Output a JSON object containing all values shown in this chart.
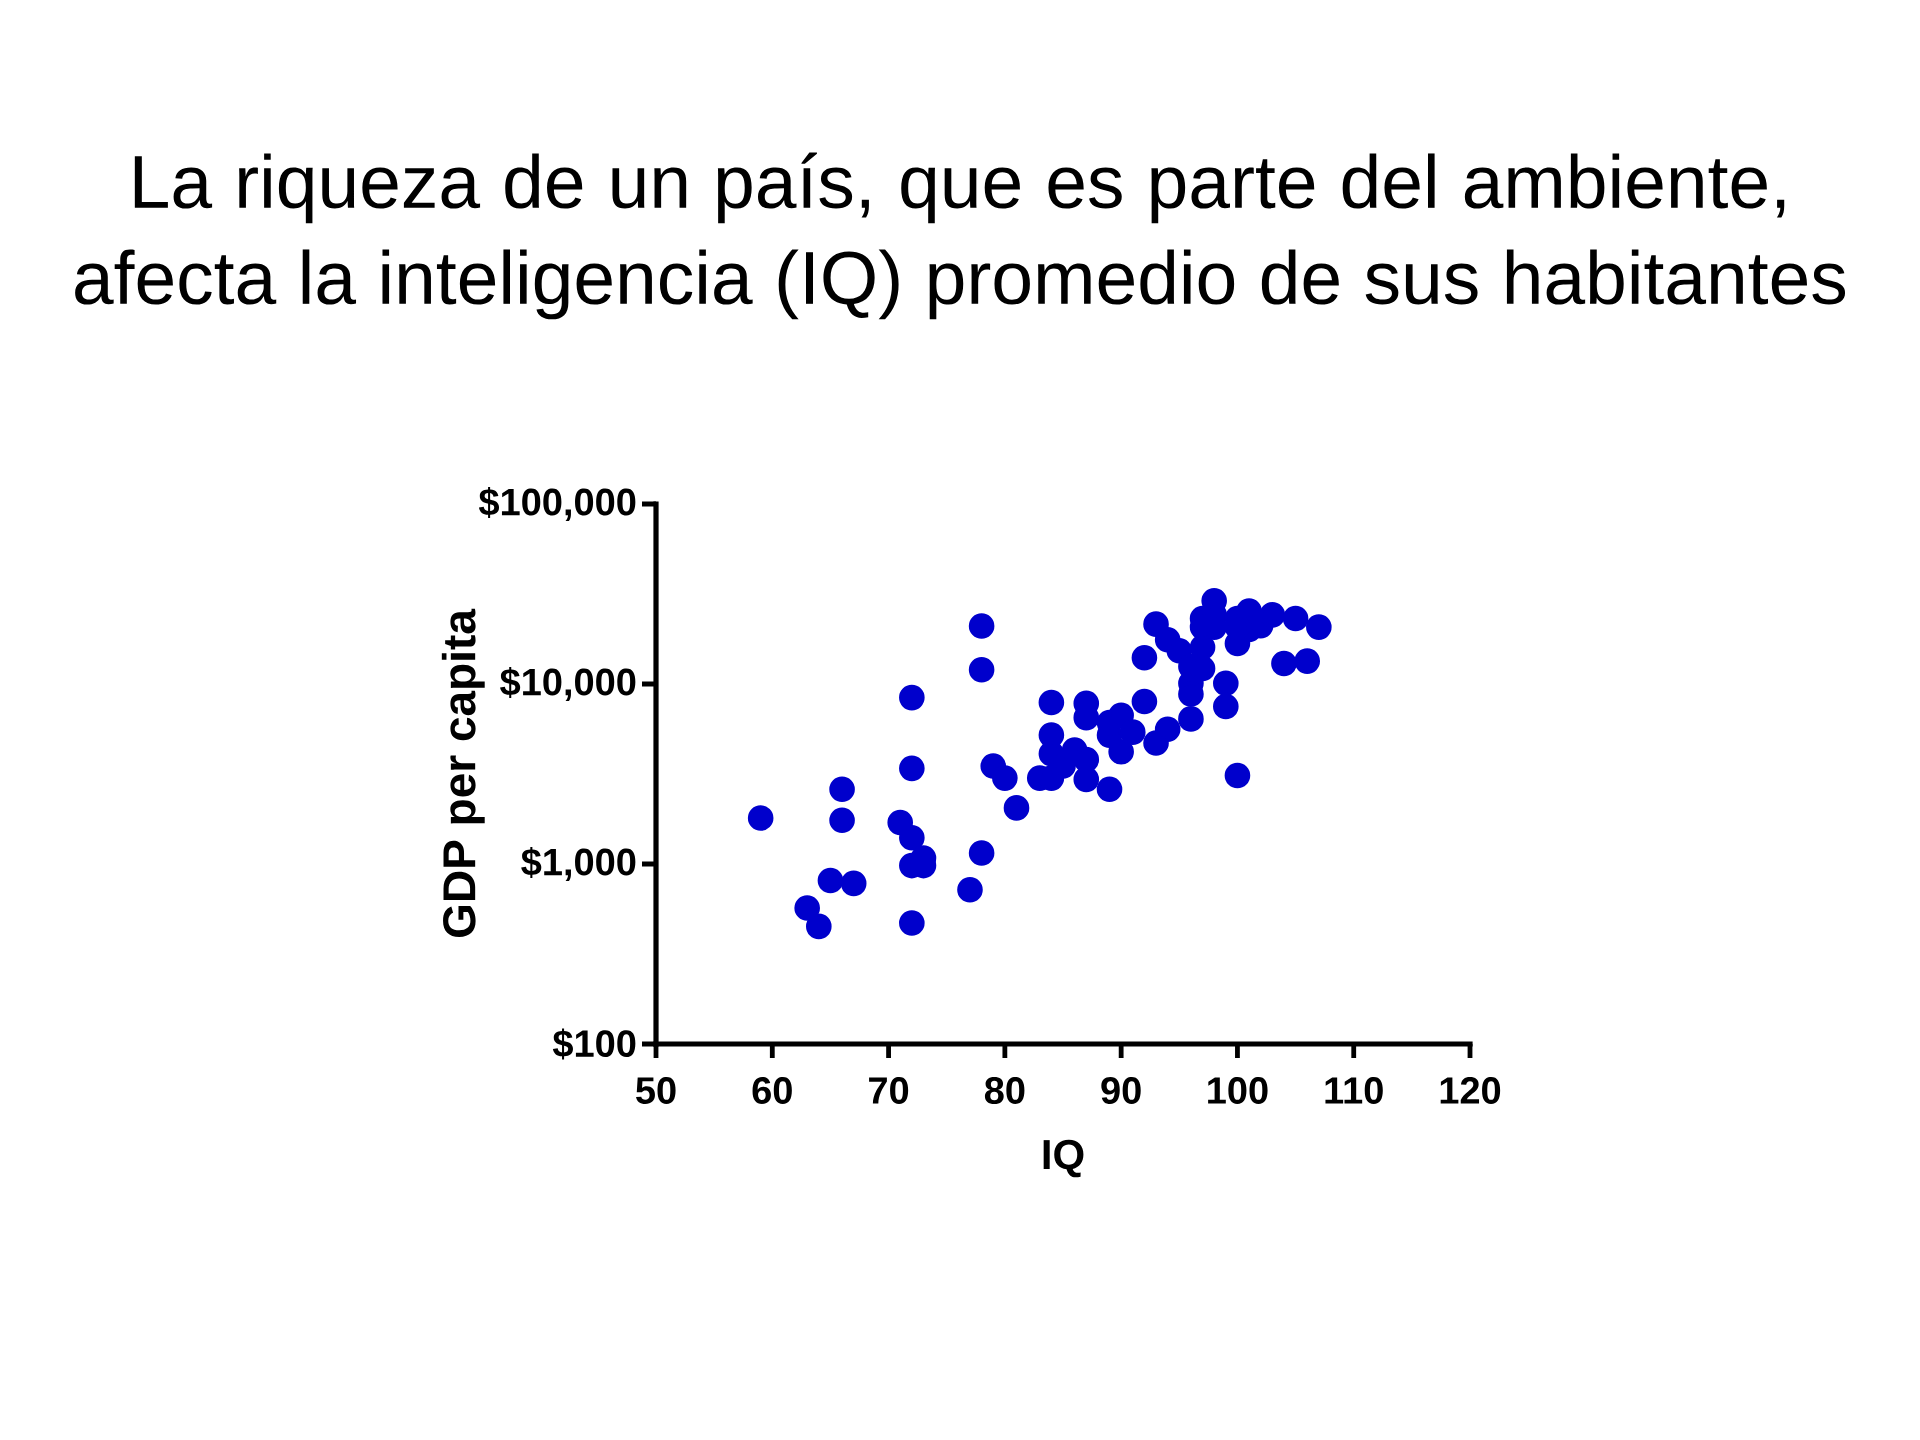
{
  "chart_data": {
    "type": "scatter",
    "title": "La riqueza de un país, que es parte del ambiente, afecta la inteligencia (IQ) promedio de sus habitantes",
    "xlabel": "IQ",
    "ylabel": "GDP per capita",
    "color": "#0000cc",
    "marker": "circle",
    "log": "y",
    "xlim": [
      50,
      120
    ],
    "ylim": [
      100,
      100000
    ],
    "xticks": [
      50,
      60,
      70,
      80,
      90,
      100,
      110,
      120
    ],
    "yticks": [
      {
        "value": 100,
        "label": "$100"
      },
      {
        "value": 1000,
        "label": "$1,000"
      },
      {
        "value": 10000,
        "label": "$10,000"
      },
      {
        "value": 100000,
        "label": "$100,000"
      }
    ],
    "x": [
      59,
      63,
      64,
      65,
      67,
      66,
      66,
      71,
      72,
      72,
      72,
      72,
      73,
      73,
      72,
      77,
      78,
      78,
      78,
      79,
      80,
      81,
      83,
      84,
      84,
      84,
      84,
      85,
      86,
      87,
      87,
      87,
      87,
      89,
      89,
      89,
      90,
      90,
      91,
      93,
      94,
      92,
      92,
      93,
      94,
      95,
      96,
      96,
      96,
      96,
      97,
      97,
      99,
      99,
      100,
      98,
      98,
      97,
      98,
      97,
      100,
      100,
      101,
      101,
      102,
      103,
      105,
      107,
      104,
      106,
      100
    ],
    "values": [
      1800,
      570,
      450,
      810,
      780,
      2600,
      1750,
      1700,
      1400,
      8400,
      3400,
      980,
      1080,
      980,
      470,
      720,
      1150,
      12000,
      21000,
      3500,
      3000,
      2050,
      3000,
      3000,
      7900,
      5200,
      4100,
      3500,
      4300,
      3800,
      2950,
      7800,
      6500,
      2600,
      5200,
      6100,
      6700,
      4200,
      5400,
      4700,
      5600,
      14000,
      8000,
      21500,
      17600,
      15300,
      12500,
      10100,
      8800,
      6400,
      12200,
      16000,
      10100,
      7500,
      3100,
      29000,
      24200,
      23100,
      20700,
      20700,
      23100,
      16800,
      25400,
      20100,
      21100,
      24200,
      23100,
      20700,
      13000,
      13400,
      20700
    ]
  }
}
